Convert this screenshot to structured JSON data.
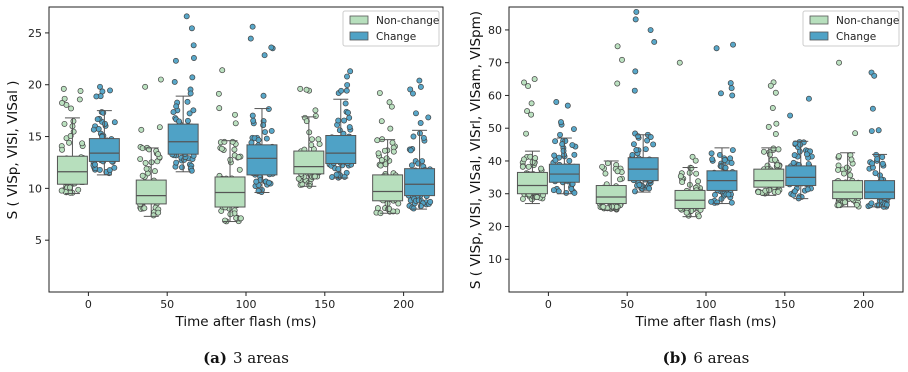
{
  "colors": {
    "non_change": "#b7dfbd",
    "change": "#4fa2c6",
    "edge": "#555555"
  },
  "chart_data": [
    {
      "type": "box",
      "caption_tag": "(a)",
      "caption_text": "3 areas",
      "xlabel": "Time after flash (ms)",
      "ylabel": "S ( VISp, VISl, VISal )",
      "categories": [
        "0",
        "50",
        "100",
        "150",
        "200"
      ],
      "ylim": [
        0,
        27.5
      ],
      "yticks": [
        "5",
        "10",
        "15",
        "20",
        "25"
      ],
      "legend_position": "top-right",
      "grid": false,
      "series": [
        {
          "name": "Non-change",
          "boxes": [
            {
              "whislo": 9.5,
              "q1": 10.4,
              "med": 11.6,
              "q3": 13.1,
              "whishi": 16.8,
              "max": 19.6
            },
            {
              "whislo": 7.3,
              "q1": 8.5,
              "med": 9.3,
              "q3": 10.8,
              "whishi": 13.9,
              "max": 20.5
            },
            {
              "whislo": 6.8,
              "q1": 8.2,
              "med": 9.6,
              "q3": 11.1,
              "whishi": 14.6,
              "max": 21.4
            },
            {
              "whislo": 10.2,
              "q1": 11.4,
              "med": 12.1,
              "q3": 13.6,
              "whishi": 16.9,
              "max": 19.6
            },
            {
              "whislo": 7.6,
              "q1": 8.8,
              "med": 9.7,
              "q3": 11.3,
              "whishi": 14.7,
              "max": 19.2
            }
          ]
        },
        {
          "name": "Change",
          "boxes": [
            {
              "whislo": 11.3,
              "q1": 12.6,
              "med": 13.4,
              "q3": 14.8,
              "whishi": 17.5,
              "max": 19.8
            },
            {
              "whislo": 11.6,
              "q1": 13.3,
              "med": 14.5,
              "q3": 16.2,
              "whishi": 18.9,
              "max": 26.6
            },
            {
              "whislo": 9.6,
              "q1": 11.3,
              "med": 12.9,
              "q3": 14.2,
              "whishi": 17.7,
              "max": 25.6
            },
            {
              "whislo": 11.0,
              "q1": 12.4,
              "med": 13.4,
              "q3": 15.1,
              "whishi": 18.6,
              "max": 21.3
            },
            {
              "whislo": 8.0,
              "q1": 9.3,
              "med": 10.4,
              "q3": 11.9,
              "whishi": 15.6,
              "max": 20.4
            }
          ]
        }
      ]
    },
    {
      "type": "box",
      "caption_tag": "(b)",
      "caption_text": "6 areas",
      "xlabel": "Time after flash (ms)",
      "ylabel": "S ( VISp, VISl, VISal, VISrl, VISam, VISpm)",
      "categories": [
        "0",
        "50",
        "100",
        "150",
        "200"
      ],
      "ylim": [
        0,
        87
      ],
      "yticks": [
        "10",
        "20",
        "30",
        "40",
        "50",
        "60",
        "70",
        "80"
      ],
      "legend_position": "top-right",
      "grid": false,
      "series": [
        {
          "name": "Non-change",
          "boxes": [
            {
              "whislo": 27,
              "q1": 30,
              "med": 32.5,
              "q3": 36.5,
              "whishi": 43,
              "max": 65
            },
            {
              "whislo": 25,
              "q1": 27,
              "med": 29,
              "q3": 32.5,
              "whishi": 40,
              "max": 75
            },
            {
              "whislo": 23,
              "q1": 25.5,
              "med": 28,
              "q3": 31,
              "whishi": 38,
              "max": 70
            },
            {
              "whislo": 29.5,
              "q1": 32,
              "med": 34,
              "q3": 37.5,
              "whishi": 44,
              "max": 64
            },
            {
              "whislo": 26,
              "q1": 28.5,
              "med": 30.5,
              "q3": 34,
              "whishi": 42.5,
              "max": 70
            }
          ]
        },
        {
          "name": "Change",
          "boxes": [
            {
              "whislo": 30,
              "q1": 33.5,
              "med": 36,
              "q3": 39,
              "whishi": 47,
              "max": 58
            },
            {
              "whislo": 30.5,
              "q1": 34,
              "med": 37.5,
              "q3": 41,
              "whishi": 48,
              "max": 85.5
            },
            {
              "whislo": 27,
              "q1": 31,
              "med": 34,
              "q3": 37,
              "whishi": 44,
              "max": 75.5
            },
            {
              "whislo": 28.5,
              "q1": 32.5,
              "med": 35,
              "q3": 38.5,
              "whishi": 46,
              "max": 59
            },
            {
              "whislo": 26,
              "q1": 28.5,
              "med": 30.5,
              "q3": 34,
              "whishi": 42,
              "max": 67
            }
          ]
        }
      ]
    }
  ]
}
